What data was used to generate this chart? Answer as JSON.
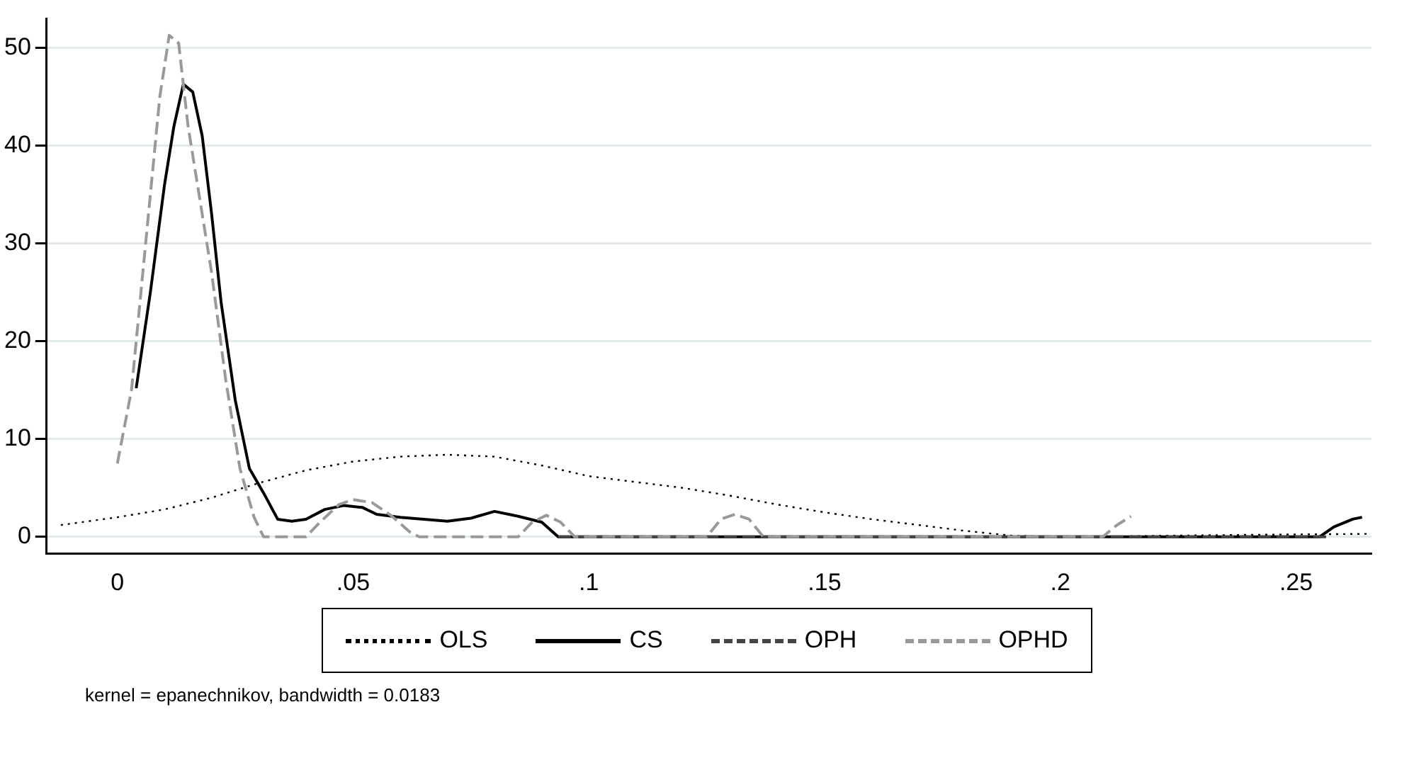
{
  "chart_data": {
    "type": "line",
    "xlim": [
      -0.015,
      0.266
    ],
    "ylim": [
      -1.7,
      53
    ],
    "xticks": [
      0,
      {
        "value": 0.05,
        "label": ".05"
      },
      {
        "value": 0.1,
        "label": ".1"
      },
      {
        "value": 0.15,
        "label": ".15"
      },
      {
        "value": 0.2,
        "label": ".2"
      },
      {
        "value": 0.25,
        "label": ".25"
      }
    ],
    "yticks": [
      0,
      10,
      20,
      30,
      40,
      50
    ],
    "grid": "y",
    "legend": "bottom",
    "annotations": [
      "kernel = epanechnikov, bandwidth = 0.0183"
    ],
    "series": [
      {
        "name": "OLS",
        "color": "#000000",
        "line_style": "dotted",
        "x": [
          -0.012,
          0,
          0.01,
          0.02,
          0.03,
          0.04,
          0.05,
          0.06,
          0.07,
          0.08,
          0.09,
          0.1,
          0.11,
          0.12,
          0.13,
          0.14,
          0.15,
          0.16,
          0.17,
          0.18,
          0.19,
          0.2,
          0.21,
          0.22,
          0.24,
          0.265
        ],
        "values": [
          1.2,
          2,
          2.8,
          4,
          5.5,
          6.8,
          7.7,
          8.2,
          8.4,
          8.2,
          7.3,
          6.2,
          5.6,
          5,
          4.2,
          3.3,
          2.5,
          1.8,
          1.2,
          0.6,
          0.1,
          0,
          0,
          0.1,
          0.2,
          0.3
        ]
      },
      {
        "name": "CS",
        "color": "#000000",
        "line_style": "solid",
        "x": [
          0.004,
          0.007,
          0.01,
          0.012,
          0.014,
          0.016,
          0.018,
          0.02,
          0.022,
          0.025,
          0.028,
          0.031,
          0.034,
          0.037,
          0.04,
          0.044,
          0.048,
          0.052,
          0.055,
          0.06,
          0.065,
          0.07,
          0.075,
          0.08,
          0.085,
          0.09,
          0.0935,
          0.255,
          0.258,
          0.262,
          0.264
        ],
        "values": [
          15.2,
          25,
          36,
          42,
          46.3,
          45.5,
          41,
          33,
          24,
          14,
          7,
          4.5,
          1.8,
          1.6,
          1.8,
          2.8,
          3.2,
          3,
          2.3,
          2,
          1.8,
          1.6,
          1.9,
          2.6,
          2.1,
          1.5,
          0,
          0,
          1,
          1.8,
          2
        ]
      },
      {
        "name": "OPH",
        "color": "#444444",
        "line_style": "dashed",
        "x": [
          0.0935,
          0.257
        ],
        "values": [
          0,
          0
        ]
      },
      {
        "name": "OPHD",
        "color": "#999999",
        "line_style": "dashed",
        "x": [
          0,
          0.003,
          0.006,
          0.009,
          0.011,
          0.013,
          0.015,
          0.017,
          0.02,
          0.023,
          0.026,
          0.029,
          0.031,
          0.04,
          0.043,
          0.047,
          0.05,
          0.054,
          0.058,
          0.062,
          0.064,
          0.085,
          0.088,
          0.091,
          0.094,
          0.097,
          0.125,
          0.128,
          0.131,
          0.134,
          0.137,
          0.209,
          0.212,
          0.215
        ],
        "values": [
          7.5,
          15,
          30,
          45,
          51.3,
          50.5,
          42,
          36,
          27,
          16,
          7,
          2,
          0,
          0,
          1.5,
          3.3,
          3.8,
          3.5,
          2.2,
          0.5,
          0,
          0,
          1.5,
          2.2,
          1.5,
          0,
          0,
          1.8,
          2.3,
          1.8,
          0,
          0,
          1.2,
          2.1
        ]
      }
    ]
  }
}
